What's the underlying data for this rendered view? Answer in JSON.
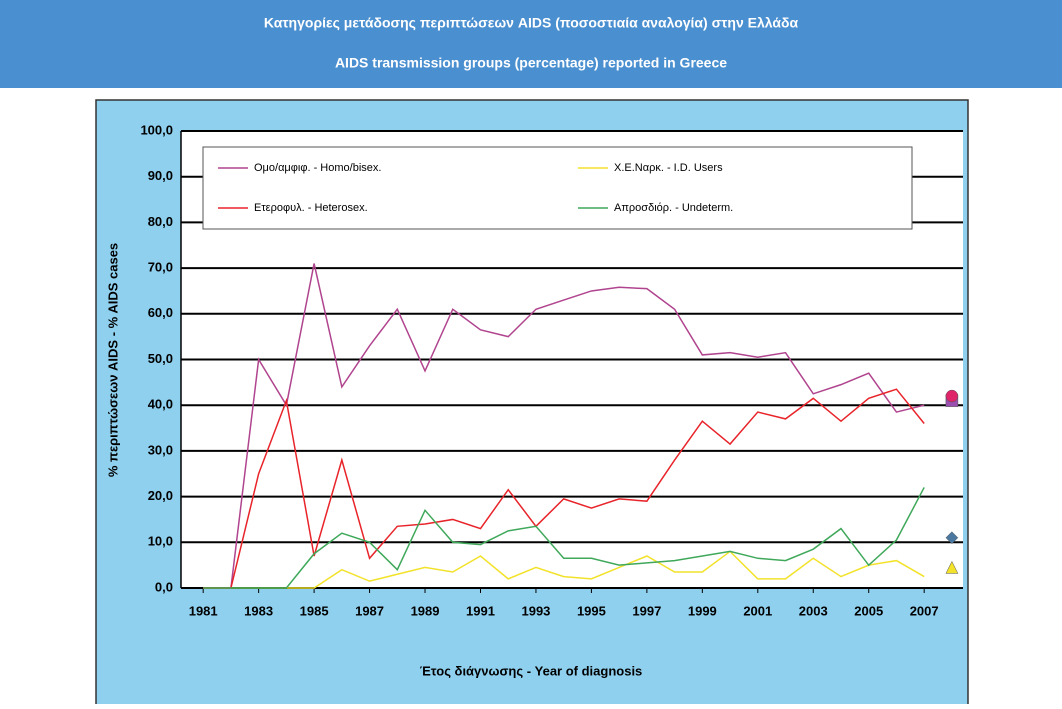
{
  "header": {
    "title_el": "Κατηγορίες μετάδοσης περιπτώσεων AIDS (ποσοστιαία αναλογία) στην Ελλάδα",
    "title_en": "AIDS transmission groups (percentage) reported in Greece"
  },
  "chart_data": {
    "type": "line",
    "x": [
      1981,
      1982,
      1983,
      1984,
      1985,
      1986,
      1987,
      1988,
      1989,
      1990,
      1991,
      1992,
      1993,
      1994,
      1995,
      1996,
      1997,
      1998,
      1999,
      2000,
      2001,
      2002,
      2003,
      2004,
      2005,
      2006,
      2007
    ],
    "xlim": [
      1980.2,
      2008.4
    ],
    "xticks": [
      1981,
      1983,
      1985,
      1987,
      1989,
      1991,
      1993,
      1995,
      1997,
      1999,
      2001,
      2003,
      2005,
      2007
    ],
    "ylim": [
      0,
      100
    ],
    "yticks": [
      {
        "value": 0,
        "label": "0,0"
      },
      {
        "value": 10,
        "label": "10,0"
      },
      {
        "value": 20,
        "label": "20,0"
      },
      {
        "value": 30,
        "label": "30,0"
      },
      {
        "value": 40,
        "label": "40,0"
      },
      {
        "value": 50,
        "label": "50,0"
      },
      {
        "value": 60,
        "label": "60,0"
      },
      {
        "value": 70,
        "label": "70,0"
      },
      {
        "value": 80,
        "label": "80,0"
      },
      {
        "value": 90,
        "label": "90,0"
      },
      {
        "value": 100,
        "label": "100,0"
      }
    ],
    "grid": true,
    "y_label": "% περιπτώσεων AIDS - % AIDS cases",
    "x_label": "Έτος διάγνωσης - Year of diagnosis",
    "point_x": 2008,
    "series": [
      {
        "name": "Ομο/αμφιφ. - Homo/bisex.",
        "color": "#b0448e",
        "marker": "square",
        "marker_color": "#9b4fb0",
        "point": 41,
        "values": [
          0,
          0,
          50,
          40,
          71,
          44,
          53,
          61,
          47.5,
          61,
          56.5,
          55,
          61,
          63,
          65,
          65.8,
          65.5,
          61,
          51,
          51.5,
          50.5,
          51.5,
          42.5,
          44.5,
          47,
          38.5,
          40
        ]
      },
      {
        "name": "Χ.Ε.Ναρκ. - I.D. Users",
        "color": "#f2e22a",
        "marker": "triangle",
        "marker_color": "#f2e22a",
        "point": 4.5,
        "values": [
          0,
          0,
          0,
          0,
          0,
          4,
          1.5,
          3,
          4.5,
          3.5,
          7,
          2,
          4.5,
          2.5,
          2,
          4.5,
          7,
          3.5,
          3.5,
          8,
          2,
          2,
          6.5,
          2.5,
          5,
          6,
          2.5
        ]
      },
      {
        "name": "Ετεροφυλ. - Heterosex.",
        "color": "#e8242a",
        "marker": "circle",
        "marker_color": "#e0246a",
        "point": 42,
        "values": [
          0,
          0,
          25,
          41,
          7,
          28,
          6.5,
          13.5,
          14,
          15,
          13,
          21.5,
          13.5,
          19.5,
          17.5,
          19.5,
          19,
          28,
          36.5,
          31.5,
          38.5,
          37,
          41.5,
          36.5,
          41.5,
          43.5,
          36
        ]
      },
      {
        "name": "Απροσδιόρ. - Undeterm.",
        "color": "#3fa85a",
        "marker": "diamond",
        "marker_color": "#4a78a0",
        "point": 11,
        "values": [
          0,
          0,
          0,
          0,
          7.5,
          12,
          10,
          4,
          17,
          10,
          9.5,
          12.5,
          13.5,
          6.5,
          6.5,
          5,
          5.5,
          6,
          7,
          8,
          6.5,
          6,
          8.5,
          13,
          5,
          10.5,
          22
        ]
      }
    ]
  }
}
